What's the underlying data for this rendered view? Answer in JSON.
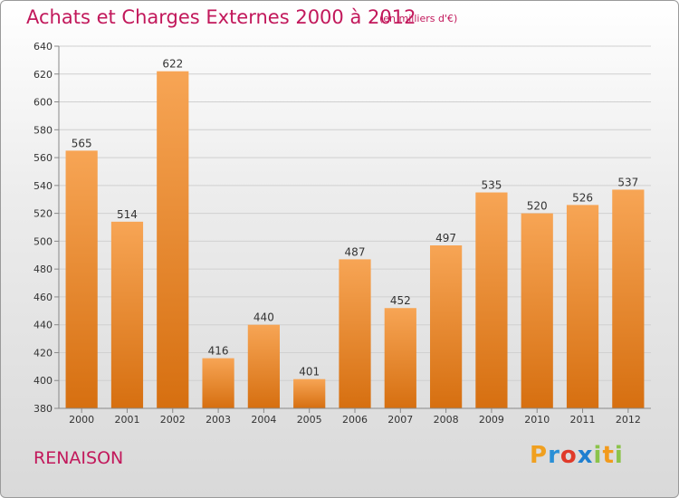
{
  "header": {
    "title": "Achats et Charges Externes 2000 à 2012",
    "subtitle": "(en milliers d'€)"
  },
  "footer": {
    "commune": "RENAISON",
    "logo_letters": [
      "P",
      "r",
      "o",
      "x",
      "i",
      "t",
      "i"
    ],
    "logo_colors": [
      "#f0a020",
      "#2a8fd6",
      "#e03a2a",
      "#1f7fd0",
      "#8bc34a",
      "#f29a1c",
      "#8bc34a"
    ]
  },
  "chart_data": {
    "type": "bar",
    "categories": [
      "2000",
      "2001",
      "2002",
      "2003",
      "2004",
      "2005",
      "2006",
      "2007",
      "2008",
      "2009",
      "2010",
      "2011",
      "2012"
    ],
    "values": [
      565,
      514,
      622,
      416,
      440,
      401,
      487,
      452,
      497,
      535,
      520,
      526,
      537
    ],
    "title": "Achats et Charges Externes 2000 à 2012",
    "subtitle": "(en milliers d'€)",
    "xlabel": "",
    "ylabel": "",
    "ylim": [
      380,
      640
    ],
    "yticks": [
      380,
      400,
      420,
      440,
      460,
      480,
      500,
      520,
      540,
      560,
      580,
      600,
      620,
      640
    ],
    "grid": true,
    "bar_color": "#f29a3c"
  }
}
